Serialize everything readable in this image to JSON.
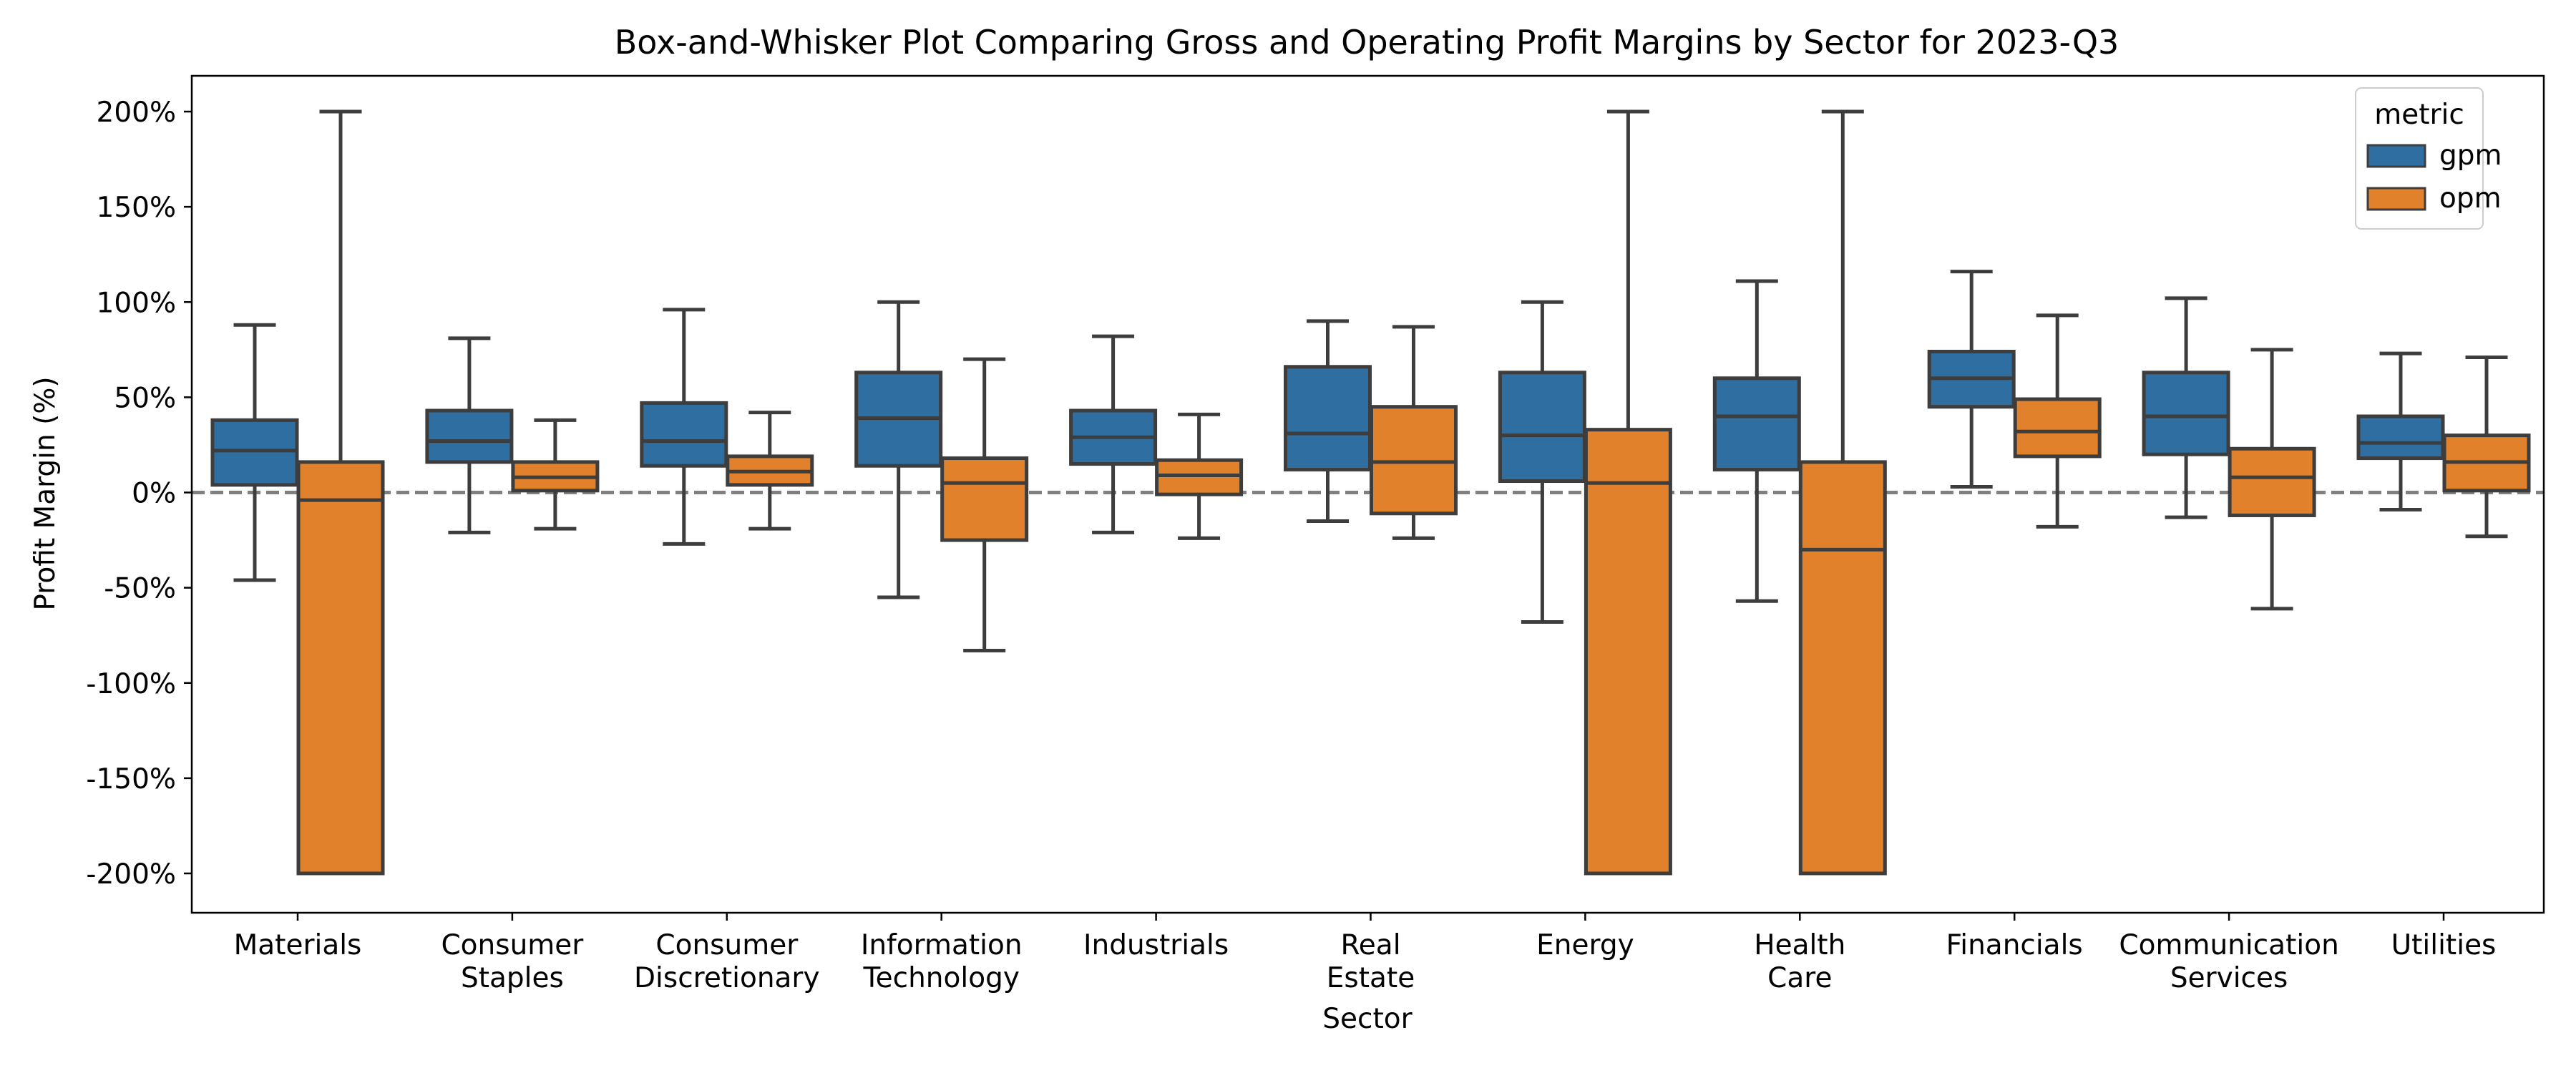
{
  "chart_data": {
    "type": "box",
    "title": "Box-and-Whisker Plot Comparing Gross and Operating Profit Margins by Sector for 2023-Q3",
    "xlabel": "Sector",
    "ylabel": "Profit Margin (%)",
    "ylim": [
      -220,
      220
    ],
    "y_ticks": [
      200,
      150,
      100,
      50,
      0,
      -50,
      -100,
      -150,
      -200
    ],
    "y_tick_labels": [
      "200%",
      "150%",
      "100%",
      "50%",
      "0%",
      "-50%",
      "-100%",
      "-150%",
      "-200%"
    ],
    "reference_line": 0,
    "categories": [
      [
        "Materials"
      ],
      [
        "Consumer",
        "Staples"
      ],
      [
        "Consumer",
        "Discretionary"
      ],
      [
        "Information",
        "Technology"
      ],
      [
        "Industrials"
      ],
      [
        "Real",
        "Estate"
      ],
      [
        "Energy"
      ],
      [
        "Health",
        "Care"
      ],
      [
        "Financials"
      ],
      [
        "Communication",
        "Services"
      ],
      [
        "Utilities"
      ]
    ],
    "legend": {
      "title": "metric",
      "position": "top-right"
    },
    "series": [
      {
        "name": "gpm",
        "color": "#2e6ea1",
        "boxes": [
          {
            "whislo": -46,
            "q1": 4,
            "med": 22,
            "q3": 38,
            "whishi": 88
          },
          {
            "whislo": -21,
            "q1": 16,
            "med": 27,
            "q3": 43,
            "whishi": 81
          },
          {
            "whislo": -27,
            "q1": 14,
            "med": 27,
            "q3": 47,
            "whishi": 96
          },
          {
            "whislo": -55,
            "q1": 14,
            "med": 39,
            "q3": 63,
            "whishi": 100
          },
          {
            "whislo": -21,
            "q1": 15,
            "med": 29,
            "q3": 43,
            "whishi": 82
          },
          {
            "whislo": -15,
            "q1": 12,
            "med": 31,
            "q3": 66,
            "whishi": 90
          },
          {
            "whislo": -68,
            "q1": 6,
            "med": 30,
            "q3": 63,
            "whishi": 100
          },
          {
            "whislo": -57,
            "q1": 12,
            "med": 40,
            "q3": 60,
            "whishi": 111
          },
          {
            "whislo": 3,
            "q1": 45,
            "med": 60,
            "q3": 74,
            "whishi": 116
          },
          {
            "whislo": -13,
            "q1": 20,
            "med": 40,
            "q3": 63,
            "whishi": 102
          },
          {
            "whislo": -9,
            "q1": 18,
            "med": 26,
            "q3": 40,
            "whishi": 73
          }
        ]
      },
      {
        "name": "opm",
        "color": "#e1812c",
        "boxes": [
          {
            "whislo": -200,
            "q1": -200,
            "med": -4,
            "q3": 16,
            "whishi": 200
          },
          {
            "whislo": -19,
            "q1": 1,
            "med": 8,
            "q3": 16,
            "whishi": 38
          },
          {
            "whislo": -19,
            "q1": 4,
            "med": 11,
            "q3": 19,
            "whishi": 42
          },
          {
            "whislo": -83,
            "q1": -25,
            "med": 5,
            "q3": 18,
            "whishi": 70
          },
          {
            "whislo": -24,
            "q1": -1,
            "med": 9,
            "q3": 17,
            "whishi": 41
          },
          {
            "whislo": -24,
            "q1": -11,
            "med": 16,
            "q3": 45,
            "whishi": 87
          },
          {
            "whislo": -200,
            "q1": -200,
            "med": 5,
            "q3": 33,
            "whishi": 200
          },
          {
            "whislo": -200,
            "q1": -200,
            "med": -30,
            "q3": 16,
            "whishi": 200
          },
          {
            "whislo": -18,
            "q1": 19,
            "med": 32,
            "q3": 49,
            "whishi": 93
          },
          {
            "whislo": -61,
            "q1": -12,
            "med": 8,
            "q3": 23,
            "whishi": 75
          },
          {
            "whislo": -23,
            "q1": 1,
            "med": 16,
            "q3": 30,
            "whishi": 71
          }
        ]
      }
    ]
  }
}
